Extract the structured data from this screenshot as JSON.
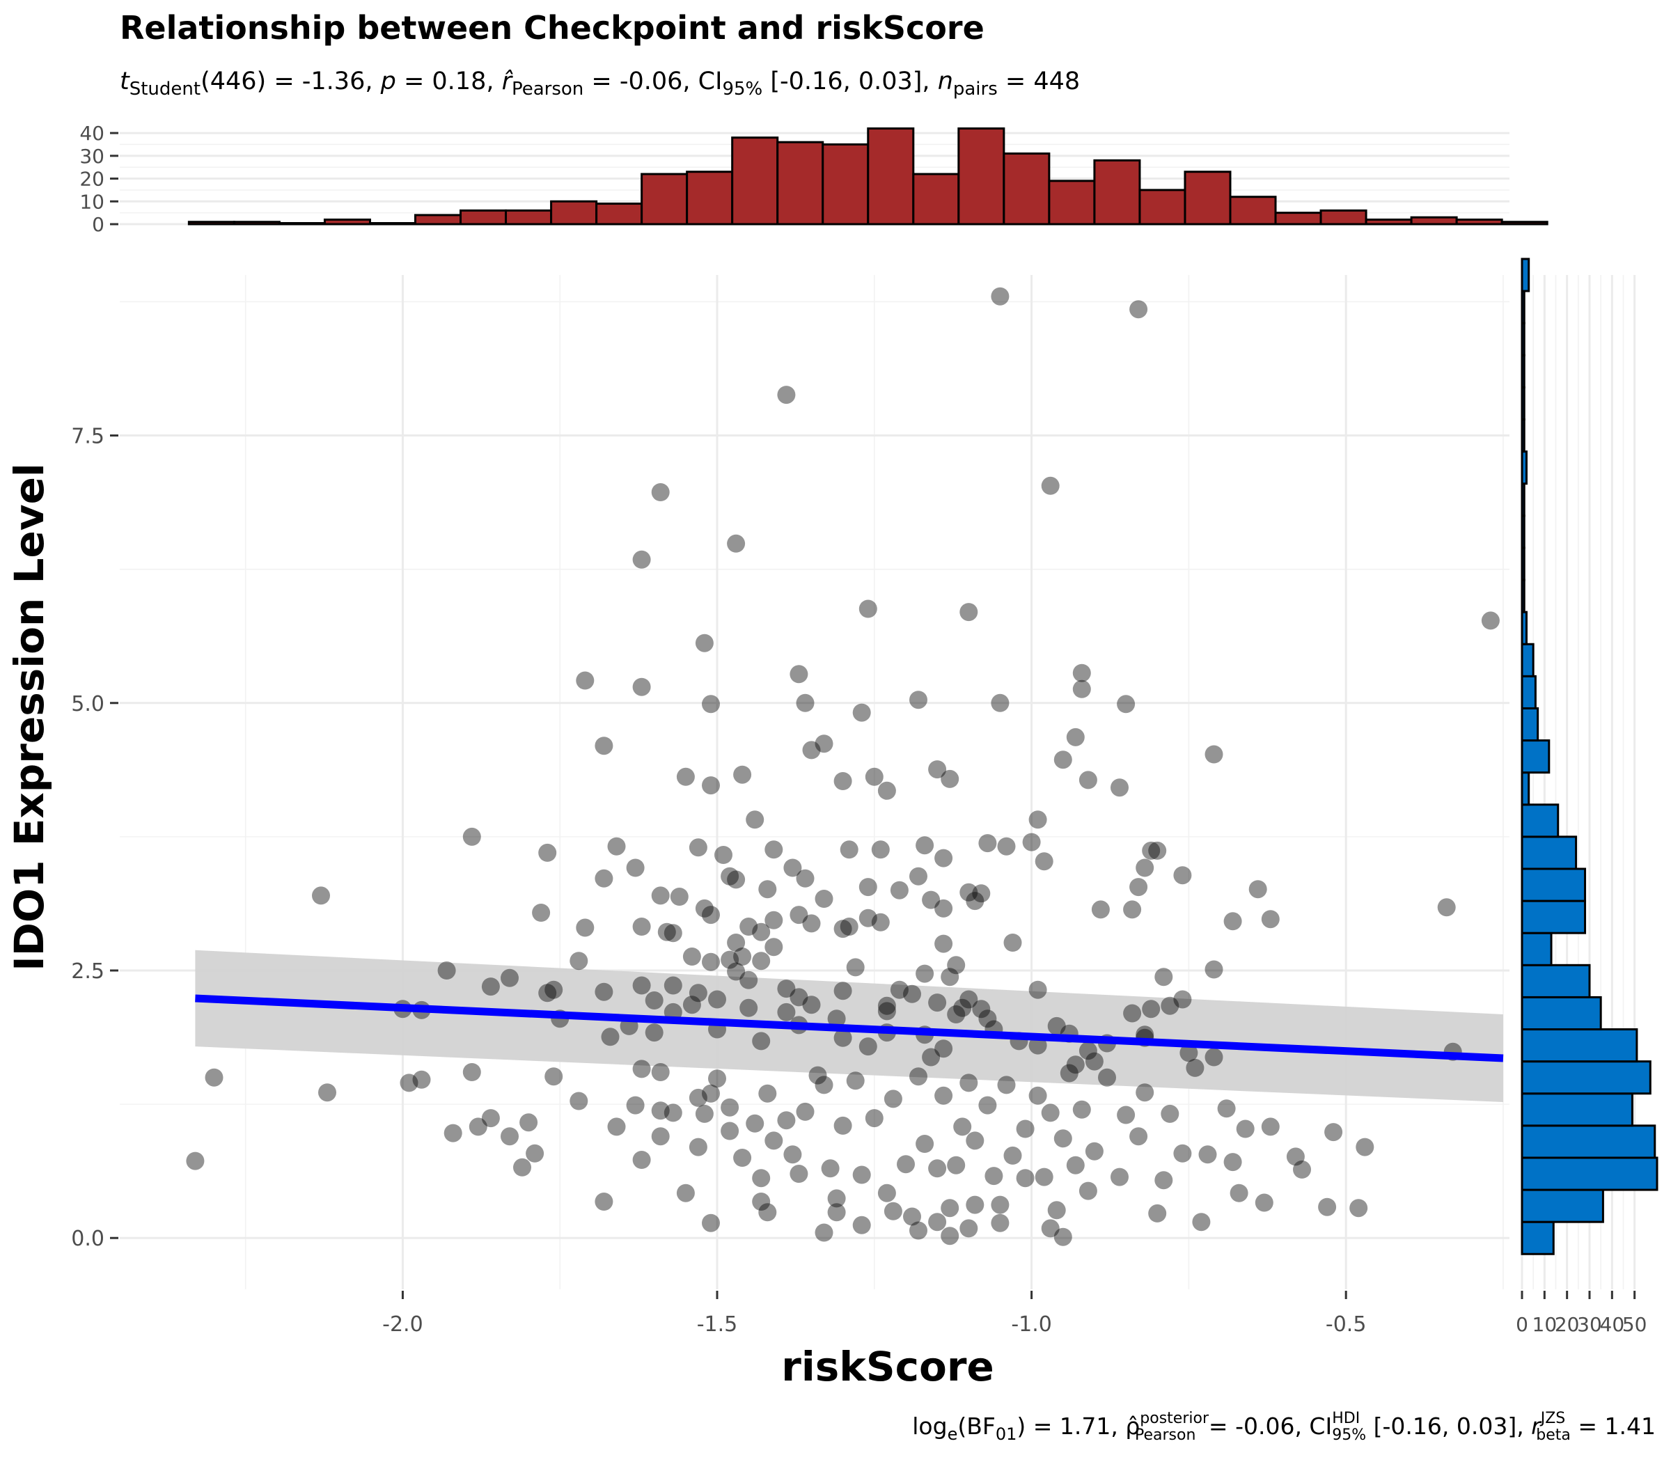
{
  "title": "Relationship between Checkpoint and riskScore",
  "subtitle": {
    "t_label": "t",
    "t_sub": "Student",
    "df_part": "(446) = -1.36, ",
    "p_label": "p",
    "p_part": " = 0.18, ",
    "r_label": "r̂",
    "r_sub": "Pearson",
    "r_part": " = -0.06, CI",
    "ci_sub": "95%",
    "ci_part": " [-0.16, 0.03], ",
    "n_label": "n",
    "n_sub": "pairs",
    "n_part": " = 448"
  },
  "caption": {
    "log": "log",
    "log_sub": "e",
    "bf_pre": "(BF",
    "bf_sub": "01",
    "bf_post": ") = 1.71, ",
    "rho": "ρ̂",
    "rho_sup": "posterior",
    "rho_sub": "Pearson",
    "rho_part": " = -0.06, CI",
    "ci_sup": "HDI",
    "ci_sub": "95%",
    "ci_part": " [-0.16, 0.03], ",
    "r": "r",
    "r_sup": "JZS",
    "r_sub": "beta",
    "r_part": " = 1.41"
  },
  "colors": {
    "points": "#000000",
    "regression_line": "#0000ff",
    "ci_band": "#d3d3d3",
    "top_histogram_fill": "#a52a2a",
    "right_histogram_fill": "#0072c6",
    "bar_outline": "#000000"
  },
  "chart_data": [
    {
      "type": "scatter",
      "name": "main",
      "xlabel": "riskScore",
      "ylabel": "IDO1 Expression Level",
      "xlim": [
        -2.45,
        -0.24
      ],
      "ylim": [
        -0.48,
        9.0
      ],
      "xticks": [
        -2.0,
        -1.5,
        -1.0,
        -0.5
      ],
      "xtick_labels": [
        "-2.0",
        "-1.5",
        "-1.0",
        "-0.5"
      ],
      "yticks": [
        0.0,
        2.5,
        5.0,
        7.5
      ],
      "ytick_labels": [
        "0.0",
        "2.5",
        "5.0",
        "7.5"
      ],
      "grid": true,
      "regression": {
        "x": [
          -2.33,
          -0.25
        ],
        "y": [
          2.24,
          1.68
        ],
        "ci_lower_start": 1.79,
        "ci_upper_start": 2.69,
        "ci_lower_end": 1.27,
        "ci_upper_end": 2.09
      },
      "points": [
        [
          -1.05,
          8.8
        ],
        [
          -0.83,
          8.68
        ],
        [
          -1.39,
          7.88
        ],
        [
          -1.59,
          6.97
        ],
        [
          -0.97,
          7.03
        ],
        [
          -1.62,
          6.34
        ],
        [
          -1.47,
          6.49
        ],
        [
          -0.27,
          5.77
        ],
        [
          -1.26,
          5.88
        ],
        [
          -1.1,
          5.85
        ],
        [
          -1.52,
          5.56
        ],
        [
          -1.71,
          5.21
        ],
        [
          -1.62,
          5.15
        ],
        [
          -1.37,
          5.27
        ],
        [
          -0.92,
          5.28
        ],
        [
          -1.51,
          4.99
        ],
        [
          -1.36,
          5.0
        ],
        [
          -1.18,
          5.03
        ],
        [
          -1.05,
          5.0
        ],
        [
          -0.85,
          4.99
        ],
        [
          -0.92,
          5.13
        ],
        [
          -1.27,
          4.91
        ],
        [
          -1.68,
          4.6
        ],
        [
          -1.33,
          4.62
        ],
        [
          -0.93,
          4.68
        ],
        [
          -1.55,
          4.31
        ],
        [
          -1.51,
          4.23
        ],
        [
          -1.46,
          4.33
        ],
        [
          -1.35,
          4.56
        ],
        [
          -1.3,
          4.27
        ],
        [
          -1.25,
          4.31
        ],
        [
          -1.23,
          4.18
        ],
        [
          -1.15,
          4.38
        ],
        [
          -1.13,
          4.29
        ],
        [
          -0.95,
          4.47
        ],
        [
          -0.91,
          4.28
        ],
        [
          -0.86,
          4.21
        ],
        [
          -0.71,
          4.52
        ],
        [
          -1.44,
          3.91
        ],
        [
          -0.99,
          3.91
        ],
        [
          -1.89,
          3.75
        ],
        [
          -1.77,
          3.6
        ],
        [
          -1.66,
          3.66
        ],
        [
          -1.53,
          3.65
        ],
        [
          -1.49,
          3.58
        ],
        [
          -1.41,
          3.63
        ],
        [
          -1.38,
          3.46
        ],
        [
          -1.29,
          3.63
        ],
        [
          -1.24,
          3.63
        ],
        [
          -1.17,
          3.67
        ],
        [
          -1.14,
          3.55
        ],
        [
          -1.07,
          3.69
        ],
        [
          -1.04,
          3.66
        ],
        [
          -1.0,
          3.7
        ],
        [
          -0.98,
          3.52
        ],
        [
          -0.8,
          3.62
        ],
        [
          -0.81,
          3.62
        ],
        [
          -2.13,
          3.2
        ],
        [
          -1.63,
          3.46
        ],
        [
          -1.56,
          3.19
        ],
        [
          -1.51,
          3.02
        ],
        [
          -1.48,
          3.38
        ],
        [
          -1.47,
          3.35
        ],
        [
          -1.42,
          3.26
        ],
        [
          -1.36,
          3.36
        ],
        [
          -1.33,
          3.17
        ],
        [
          -1.26,
          3.28
        ],
        [
          -1.21,
          3.25
        ],
        [
          -1.18,
          3.38
        ],
        [
          -1.16,
          3.16
        ],
        [
          -1.1,
          3.23
        ],
        [
          -1.09,
          3.15
        ],
        [
          -1.08,
          3.22
        ],
        [
          -0.83,
          3.28
        ],
        [
          -0.82,
          3.46
        ],
        [
          -0.76,
          3.39
        ],
        [
          -0.64,
          3.26
        ],
        [
          -1.68,
          3.36
        ],
        [
          -1.59,
          3.2
        ],
        [
          -1.78,
          3.04
        ],
        [
          -1.71,
          2.9
        ],
        [
          -1.62,
          2.91
        ],
        [
          -1.58,
          2.86
        ],
        [
          -1.52,
          3.08
        ],
        [
          -1.45,
          2.91
        ],
        [
          -1.41,
          2.97
        ],
        [
          -1.37,
          3.02
        ],
        [
          -1.35,
          2.94
        ],
        [
          -1.29,
          2.91
        ],
        [
          -1.26,
          2.99
        ],
        [
          -1.14,
          3.08
        ],
        [
          -0.89,
          3.07
        ],
        [
          -0.84,
          3.07
        ],
        [
          -0.68,
          2.96
        ],
        [
          -0.62,
          2.98
        ],
        [
          -0.34,
          3.09
        ],
        [
          -1.57,
          2.85
        ],
        [
          -1.47,
          2.76
        ],
        [
          -1.46,
          2.63
        ],
        [
          -1.43,
          2.86
        ],
        [
          -1.41,
          2.72
        ],
        [
          -1.3,
          2.89
        ],
        [
          -1.24,
          2.95
        ],
        [
          -1.14,
          2.75
        ],
        [
          -1.12,
          2.55
        ],
        [
          -1.03,
          2.76
        ],
        [
          -2.0,
          2.14
        ],
        [
          -1.97,
          2.13
        ],
        [
          -1.93,
          2.5
        ],
        [
          -1.86,
          2.35
        ],
        [
          -1.83,
          2.43
        ],
        [
          -1.77,
          2.29
        ],
        [
          -1.76,
          2.32
        ],
        [
          -1.72,
          2.59
        ],
        [
          -1.68,
          2.3
        ],
        [
          -1.62,
          2.36
        ],
        [
          -1.6,
          2.22
        ],
        [
          -1.57,
          2.36
        ],
        [
          -1.54,
          2.63
        ],
        [
          -1.53,
          2.29
        ],
        [
          -1.51,
          2.58
        ],
        [
          -1.5,
          2.23
        ],
        [
          -1.48,
          2.6
        ],
        [
          -1.47,
          2.49
        ],
        [
          -1.45,
          2.41
        ],
        [
          -1.43,
          2.59
        ],
        [
          -1.39,
          2.33
        ],
        [
          -1.37,
          2.25
        ],
        [
          -1.35,
          2.18
        ],
        [
          -1.3,
          2.31
        ],
        [
          -1.28,
          2.53
        ],
        [
          -1.23,
          2.17
        ],
        [
          -1.21,
          2.32
        ],
        [
          -1.19,
          2.28
        ],
        [
          -1.17,
          2.47
        ],
        [
          -1.15,
          2.2
        ],
        [
          -1.13,
          2.44
        ],
        [
          -1.1,
          2.23
        ],
        [
          -1.08,
          2.14
        ],
        [
          -0.99,
          2.32
        ],
        [
          -0.79,
          2.44
        ],
        [
          -0.76,
          2.23
        ],
        [
          -0.71,
          2.51
        ],
        [
          -0.84,
          2.1
        ],
        [
          -1.57,
          2.11
        ],
        [
          -1.54,
          2.18
        ],
        [
          -1.45,
          2.15
        ],
        [
          -1.39,
          2.11
        ],
        [
          -1.31,
          2.05
        ],
        [
          -1.23,
          2.12
        ],
        [
          -1.11,
          2.15
        ],
        [
          -1.07,
          2.05
        ],
        [
          -0.78,
          2.17
        ],
        [
          -0.81,
          2.14
        ],
        [
          -2.3,
          1.5
        ],
        [
          -2.12,
          1.36
        ],
        [
          -1.99,
          1.45
        ],
        [
          -1.97,
          1.48
        ],
        [
          -1.92,
          0.98
        ],
        [
          -1.89,
          1.55
        ],
        [
          -1.88,
          1.04
        ],
        [
          -1.86,
          1.12
        ],
        [
          -1.83,
          0.95
        ],
        [
          -1.81,
          0.66
        ],
        [
          -1.8,
          1.08
        ],
        [
          -1.79,
          0.79
        ],
        [
          -1.76,
          1.51
        ],
        [
          -1.72,
          1.28
        ],
        [
          -1.66,
          1.04
        ],
        [
          -1.63,
          1.24
        ],
        [
          -1.62,
          0.73
        ],
        [
          -1.62,
          1.58
        ],
        [
          -1.59,
          1.55
        ],
        [
          -1.59,
          0.95
        ],
        [
          -1.59,
          1.19
        ],
        [
          -1.57,
          1.17
        ],
        [
          -1.55,
          0.42
        ],
        [
          -1.53,
          0.85
        ],
        [
          -1.53,
          1.31
        ],
        [
          -1.52,
          1.16
        ],
        [
          -1.51,
          1.35
        ],
        [
          -1.5,
          1.49
        ],
        [
          -1.48,
          1.22
        ],
        [
          -1.48,
          1.0
        ],
        [
          -1.46,
          0.75
        ],
        [
          -1.44,
          1.07
        ],
        [
          -1.43,
          0.56
        ],
        [
          -1.43,
          0.34
        ],
        [
          -1.42,
          1.35
        ],
        [
          -1.41,
          0.91
        ],
        [
          -1.39,
          1.1
        ],
        [
          -1.38,
          0.78
        ],
        [
          -1.37,
          0.6
        ],
        [
          -1.36,
          1.18
        ],
        [
          -1.34,
          1.52
        ],
        [
          -1.33,
          1.43
        ],
        [
          -1.32,
          0.65
        ],
        [
          -1.31,
          0.37
        ],
        [
          -1.3,
          1.05
        ],
        [
          -1.28,
          1.47
        ],
        [
          -1.27,
          0.59
        ],
        [
          -1.25,
          1.12
        ],
        [
          -1.23,
          0.42
        ],
        [
          -1.22,
          1.3
        ],
        [
          -1.2,
          0.69
        ],
        [
          -1.19,
          0.2
        ],
        [
          -1.18,
          1.51
        ],
        [
          -1.17,
          0.88
        ],
        [
          -1.16,
          1.69
        ],
        [
          -1.15,
          0.65
        ],
        [
          -1.14,
          1.33
        ],
        [
          -1.13,
          0.28
        ],
        [
          -1.12,
          0.68
        ],
        [
          -1.11,
          1.04
        ],
        [
          -1.1,
          1.45
        ],
        [
          -1.09,
          0.91
        ],
        [
          -1.07,
          1.24
        ],
        [
          -1.06,
          0.58
        ],
        [
          -1.05,
          0.31
        ],
        [
          -1.04,
          1.43
        ],
        [
          -1.03,
          0.77
        ],
        [
          -1.01,
          1.02
        ],
        [
          -0.99,
          1.33
        ],
        [
          -0.98,
          0.57
        ],
        [
          -0.97,
          1.17
        ],
        [
          -0.96,
          0.26
        ],
        [
          -0.95,
          0.93
        ],
        [
          -0.94,
          1.54
        ],
        [
          -0.93,
          0.68
        ],
        [
          -0.92,
          1.2
        ],
        [
          -0.91,
          0.44
        ],
        [
          -0.9,
          0.81
        ],
        [
          -0.88,
          1.5
        ],
        [
          -0.86,
          0.57
        ],
        [
          -0.85,
          1.15
        ],
        [
          -0.83,
          0.95
        ],
        [
          -0.82,
          1.36
        ],
        [
          -0.8,
          0.23
        ],
        [
          -0.79,
          0.54
        ],
        [
          -0.78,
          1.16
        ],
        [
          -0.76,
          0.79
        ],
        [
          -0.74,
          1.59
        ],
        [
          -0.73,
          0.15
        ],
        [
          -0.72,
          0.78
        ],
        [
          -0.71,
          1.69
        ],
        [
          -0.69,
          1.21
        ],
        [
          -0.68,
          0.71
        ],
        [
          -0.67,
          0.42
        ],
        [
          -0.66,
          1.02
        ],
        [
          -0.63,
          0.33
        ],
        [
          -0.62,
          1.04
        ],
        [
          -0.58,
          0.76
        ],
        [
          -0.57,
          0.64
        ],
        [
          -0.53,
          0.29
        ],
        [
          -0.52,
          0.99
        ],
        [
          -0.48,
          0.28
        ],
        [
          -0.47,
          0.85
        ],
        [
          -0.33,
          1.74
        ],
        [
          -1.22,
          0.25
        ],
        [
          -1.18,
          0.07
        ],
        [
          -1.15,
          0.15
        ],
        [
          -1.13,
          0.02
        ],
        [
          -1.1,
          0.09
        ],
        [
          -1.09,
          0.31
        ],
        [
          -1.05,
          0.14
        ],
        [
          -1.01,
          0.56
        ],
        [
          -0.97,
          0.09
        ],
        [
          -0.95,
          0.01
        ],
        [
          -1.27,
          0.12
        ],
        [
          -1.33,
          0.05
        ],
        [
          -1.31,
          0.24
        ],
        [
          -1.42,
          0.24
        ],
        [
          -1.51,
          0.14
        ],
        [
          -1.68,
          0.34
        ],
        [
          -2.33,
          0.72
        ],
        [
          -1.23,
          1.92
        ],
        [
          -1.06,
          1.95
        ],
        [
          -0.99,
          1.8
        ],
        [
          -0.94,
          1.91
        ],
        [
          -0.91,
          1.75
        ],
        [
          -0.88,
          1.82
        ],
        [
          -0.82,
          1.87
        ],
        [
          -0.75,
          1.73
        ],
        [
          -1.6,
          1.92
        ],
        [
          -1.64,
          1.98
        ],
        [
          -1.75,
          2.05
        ],
        [
          -1.67,
          1.88
        ],
        [
          -1.5,
          1.95
        ],
        [
          -1.43,
          1.84
        ],
        [
          -1.37,
          1.99
        ],
        [
          -1.3,
          1.87
        ],
        [
          -1.26,
          1.79
        ],
        [
          -1.17,
          1.9
        ],
        [
          -1.14,
          1.77
        ],
        [
          -1.12,
          2.09
        ],
        [
          -1.02,
          1.84
        ],
        [
          -0.96,
          1.98
        ],
        [
          -0.93,
          1.62
        ],
        [
          -0.9,
          1.65
        ],
        [
          -0.82,
          1.9
        ]
      ]
    },
    {
      "type": "bar",
      "name": "top-marginal-histogram",
      "bin_width": 0.072,
      "bin_start": -2.34,
      "counts": [
        1,
        1,
        0,
        2,
        0,
        4,
        6,
        6,
        10,
        9,
        22,
        23,
        38,
        36,
        35,
        42,
        22,
        42,
        31,
        19,
        28,
        15,
        23,
        12,
        5,
        6,
        2,
        3,
        2,
        1
      ],
      "yticks": [
        0,
        10,
        20,
        30,
        40
      ],
      "ytick_labels": [
        "0",
        "10",
        "20",
        "30",
        "40"
      ],
      "ylim": [
        0,
        44
      ]
    },
    {
      "type": "bar",
      "name": "right-marginal-histogram",
      "orientation": "horizontal",
      "bin_height": 0.3,
      "bin_start": -0.15,
      "counts": [
        14,
        36,
        60,
        59,
        49,
        57,
        51,
        35,
        30,
        13,
        28,
        28,
        24,
        16,
        3,
        12,
        7,
        6,
        5,
        2,
        1,
        1,
        1,
        1,
        2,
        1,
        1,
        1,
        1,
        1,
        3
      ],
      "xticks": [
        0,
        10,
        20,
        30,
        40,
        50
      ],
      "xtick_labels": [
        "0",
        "10",
        "20",
        "30",
        "40",
        "50"
      ],
      "xlim": [
        0,
        60
      ]
    }
  ]
}
